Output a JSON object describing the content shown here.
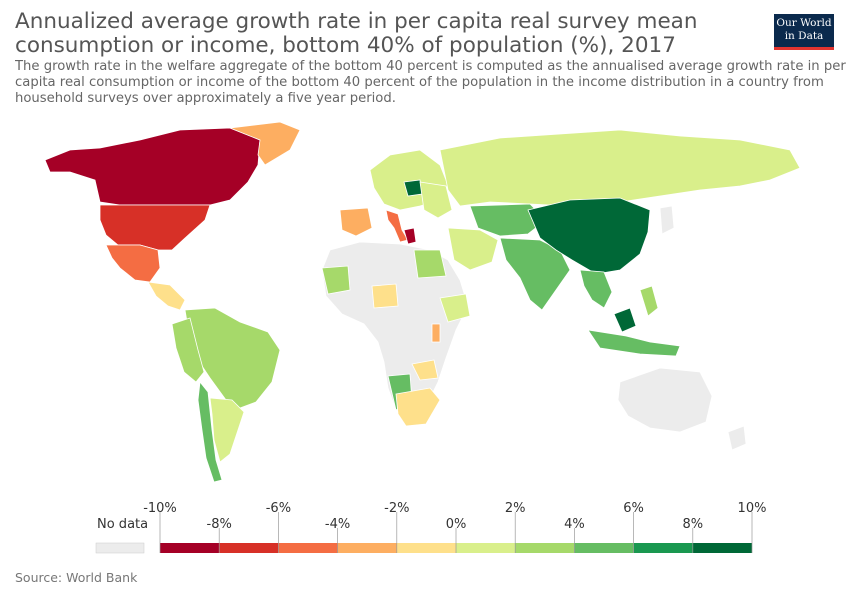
{
  "header": {
    "title_line1": "Annualized average growth rate in per capita real survey mean",
    "title_line2": "consumption or income, bottom 40% of population (%), 2017",
    "subtitle_line1": "The growth rate in the welfare aggregate of the bottom 40 percent is computed as the annualised average growth rate in per",
    "subtitle_line2": "capita real consumption or income of the bottom 40 percent of the population in the income distribution in a country from",
    "subtitle_line3": "household surveys over approximately a five year period."
  },
  "logo": {
    "line1": "Our World",
    "line2": "in Data"
  },
  "colors": {
    "no_data": "#ececec",
    "land_border": "#ffffff",
    "scale": [
      "#a50026",
      "#d73027",
      "#f46d43",
      "#fdae61",
      "#fee08b",
      "#d9ef8b",
      "#a6d96a",
      "#66bd63",
      "#1a9850",
      "#006837"
    ]
  },
  "legend": {
    "no_data_label": "No data",
    "top_ticks": [
      "-10%",
      "-6%",
      "-2%",
      "2%",
      "6%",
      "10%"
    ],
    "bottom_ticks": [
      "-8%",
      "-4%",
      "0%",
      "4%",
      "8%"
    ]
  },
  "source": "Source: World Bank",
  "map_regions": [
    {
      "name": "North America (Canada)",
      "bin": 4
    },
    {
      "name": "United States",
      "bin": 5
    },
    {
      "name": "Mexico",
      "bin": 5
    },
    {
      "name": "Greenland",
      "bin": -1
    },
    {
      "name": "Central America",
      "bin": 6
    },
    {
      "name": "South America (Brazil)",
      "bin": 6
    },
    {
      "name": "Peru / Colombia",
      "bin": 6
    },
    {
      "name": "Argentina",
      "bin": 5
    },
    {
      "name": "Chile",
      "bin": 7
    },
    {
      "name": "Russia",
      "bin": 5
    },
    {
      "name": "China",
      "bin": 9
    },
    {
      "name": "India",
      "bin": 7
    },
    {
      "name": "Kazakhstan",
      "bin": 7
    },
    {
      "name": "Spain",
      "bin": 3
    },
    {
      "name": "Italy",
      "bin": 2
    },
    {
      "name": "Greece",
      "bin": 0
    },
    {
      "name": "Poland",
      "bin": 9
    },
    {
      "name": "Egypt",
      "bin": 6
    },
    {
      "name": "Namibia",
      "bin": 7
    },
    {
      "name": "South Africa",
      "bin": 4
    },
    {
      "name": "Australia",
      "bin": -1
    },
    {
      "name": "Indonesia",
      "bin": 7
    },
    {
      "name": "Malaysia",
      "bin": 9
    },
    {
      "name": "Thailand / Vietnam",
      "bin": 7
    }
  ]
}
